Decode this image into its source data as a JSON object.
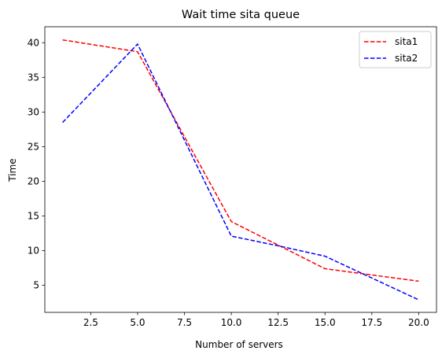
{
  "chart_data": {
    "type": "line",
    "title": "Wait time sita queue",
    "xlabel": "Number of servers",
    "ylabel": "Time",
    "xlim": [
      0.05,
      20.95
    ],
    "ylim": [
      1.1,
      42.3
    ],
    "xticks": [
      2.5,
      5.0,
      7.5,
      10.0,
      12.5,
      15.0,
      17.5,
      20.0
    ],
    "xtick_labels": [
      "2.5",
      "5.0",
      "7.5",
      "10.0",
      "12.5",
      "15.0",
      "17.5",
      "20.0"
    ],
    "yticks": [
      5,
      10,
      15,
      20,
      25,
      30,
      35,
      40
    ],
    "ytick_labels": [
      "5",
      "10",
      "15",
      "20",
      "25",
      "30",
      "35",
      "40"
    ],
    "grid": false,
    "legend_position": "top-right",
    "series": [
      {
        "name": "sita1",
        "color": "#ff0000",
        "style": "dashed",
        "x": [
          1,
          5,
          10,
          15,
          20
        ],
        "y": [
          40.4,
          38.7,
          14.2,
          7.4,
          5.6
        ]
      },
      {
        "name": "sita2",
        "color": "#0000ff",
        "style": "dashed",
        "x": [
          1,
          5,
          10,
          12.5,
          15,
          20
        ],
        "y": [
          28.5,
          39.8,
          12.1,
          10.7,
          9.2,
          2.9
        ]
      }
    ]
  }
}
